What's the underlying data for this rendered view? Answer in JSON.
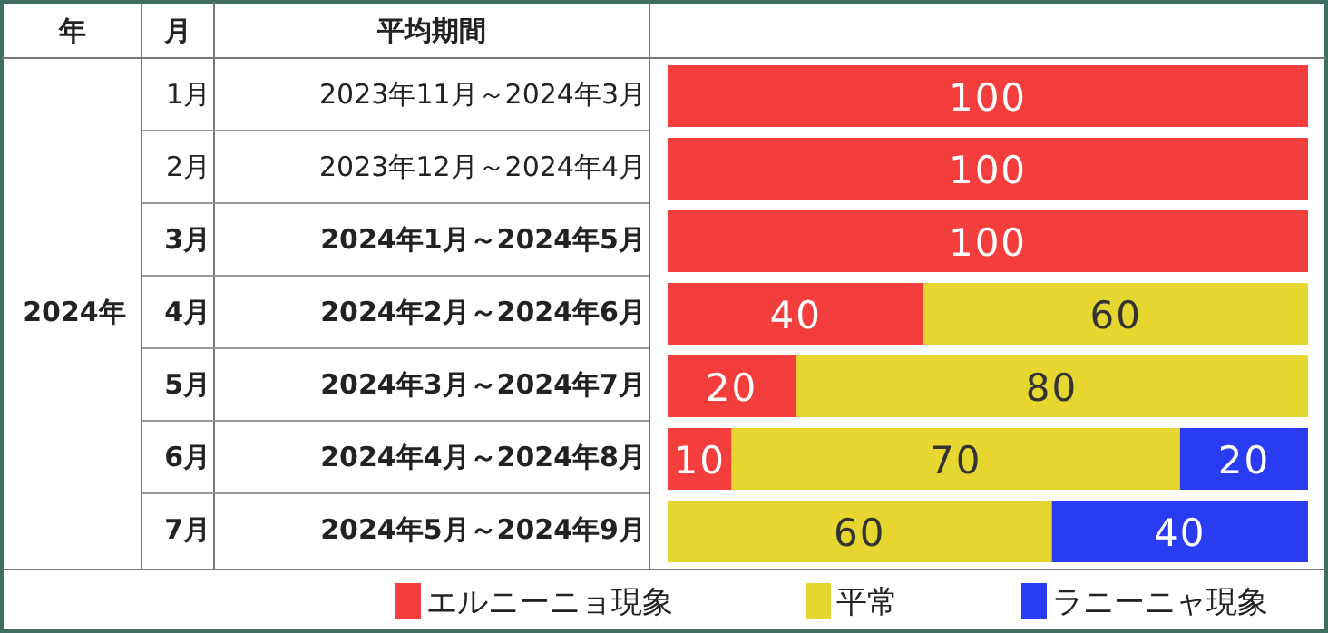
{
  "chart_data": {
    "type": "bar",
    "orientation": "horizontal",
    "stacked": true,
    "data_labels": true,
    "legend": "bottom",
    "categories": [
      "1月",
      "2月",
      "**3月**",
      "**4月**",
      "**5月**",
      "**6月**",
      "**7月**"
    ],
    "series": [
      {
        "name": "エルニーニョ現象",
        "color": "#f43d3d",
        "values": [
          100,
          100,
          100,
          40,
          20,
          10,
          null
        ]
      },
      {
        "name": "平常",
        "color": "#e5d630",
        "values": [
          null,
          null,
          null,
          60,
          80,
          70,
          60
        ]
      },
      {
        "name": "ラニーニャ現象",
        "color": "#2a3cf2",
        "values": [
          null,
          null,
          null,
          null,
          null,
          20,
          40
        ]
      }
    ],
    "annotations": [
      "年",
      "月",
      "平均期間",
      "**2024年**",
      "2023年11月～2024年3月",
      "2023年12月～2024年4月",
      "**2024年1月～2024年5月**",
      "**2024年2月～2024年6月**",
      "**2024年3月～2024年7月**",
      "**2024年4月～2024年8月**",
      "**2024年5月～2024年9月**"
    ]
  }
}
